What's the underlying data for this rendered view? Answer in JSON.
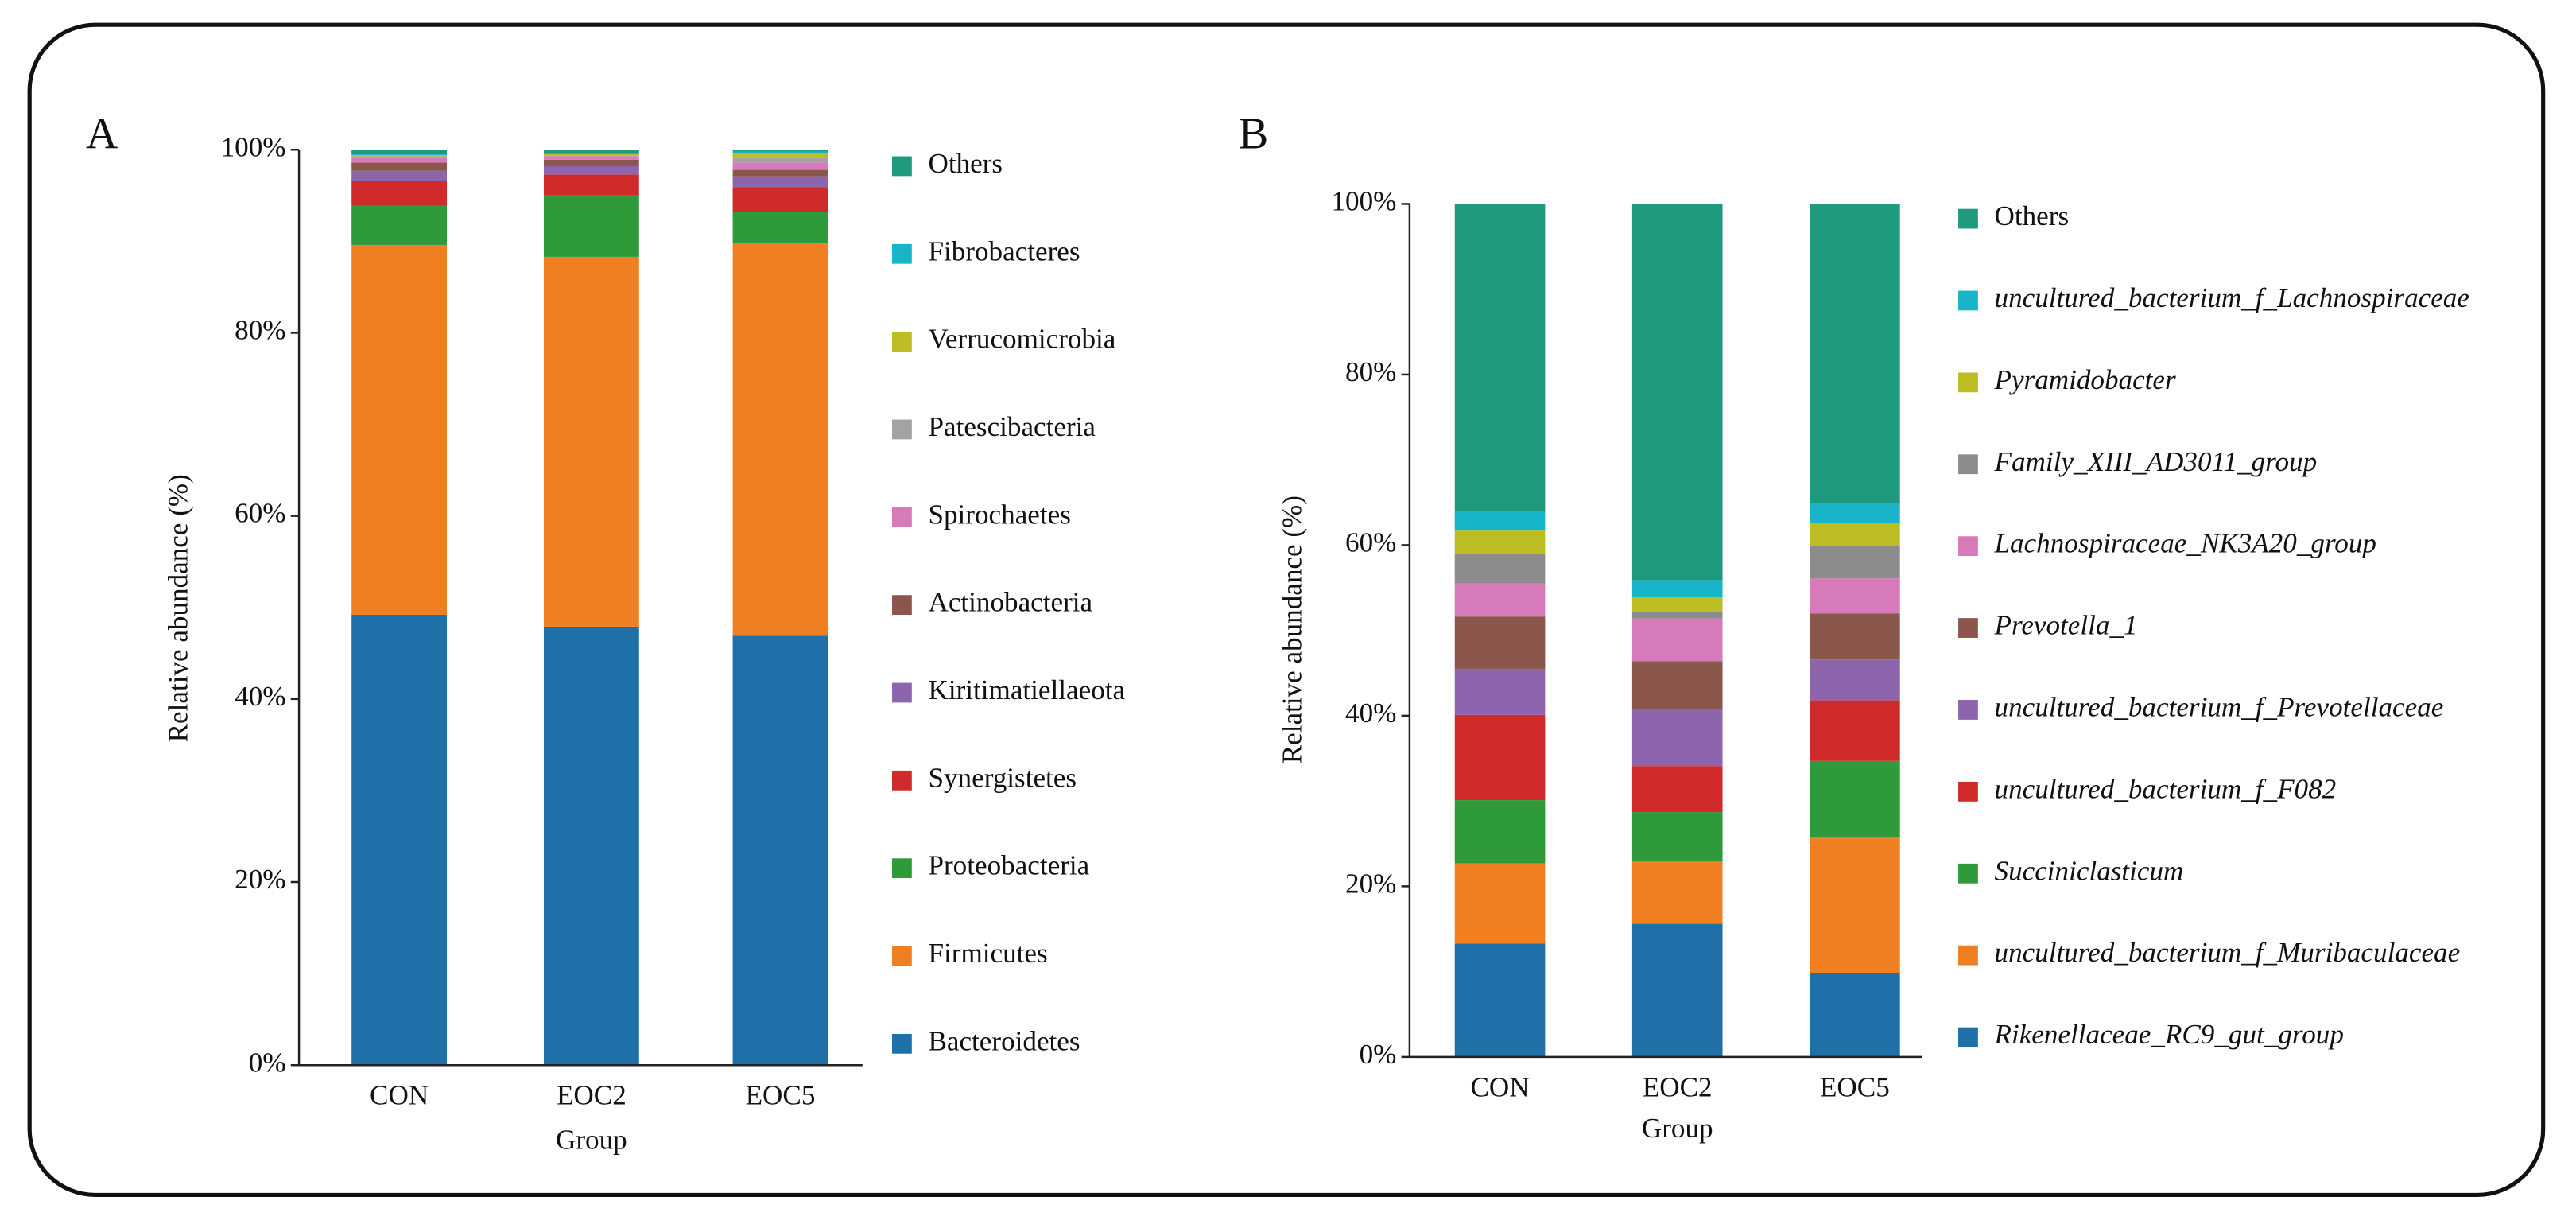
{
  "chart_data": [
    {
      "type": "stacked_bar",
      "panel": "A",
      "xlabel": "Group",
      "ylabel": "Relative abundance (%)",
      "categories": [
        "CON",
        "EOC2",
        "EOC5"
      ],
      "ylim": [
        0,
        100
      ],
      "yticks": [
        {
          "value": 0,
          "label": "0%"
        },
        {
          "value": 20,
          "label": "20%"
        },
        {
          "value": 40,
          "label": "40%"
        },
        {
          "value": 60,
          "label": "60%"
        },
        {
          "value": 80,
          "label": "80%"
        },
        {
          "value": 100,
          "label": "100%"
        }
      ],
      "series": [
        {
          "name": "Bacteroidetes",
          "color": "#1f6fa8",
          "values": [
            49.2,
            47.9,
            46.9
          ]
        },
        {
          "name": "Firmicutes",
          "color": "#f07f22",
          "values": [
            40.4,
            40.4,
            42.9
          ]
        },
        {
          "name": "Proteobacteria",
          "color": "#2f9a3a",
          "values": [
            4.3,
            6.7,
            3.4
          ]
        },
        {
          "name": "Synergistetes",
          "color": "#d12a2a",
          "values": [
            2.7,
            2.3,
            2.7
          ]
        },
        {
          "name": "Kiritimatiellaeota",
          "color": "#8c65ad",
          "values": [
            1.1,
            0.9,
            1.2
          ]
        },
        {
          "name": "Actinobacteria",
          "color": "#8b564b",
          "values": [
            0.9,
            0.7,
            0.7
          ]
        },
        {
          "name": "Spirochaetes",
          "color": "#d67ab9",
          "values": [
            0.5,
            0.4,
            0.8
          ]
        },
        {
          "name": "Patescibacteria",
          "color": "#a3a3a3",
          "values": [
            0.2,
            0.1,
            0.5
          ]
        },
        {
          "name": "Verrucomicrobia",
          "color": "#bcbd22",
          "values": [
            0.1,
            0.1,
            0.5
          ]
        },
        {
          "name": "Fibrobacteres",
          "color": "#18b5c9",
          "values": [
            0.1,
            0.1,
            0.2
          ]
        },
        {
          "name": "Others",
          "color": "#1f9a7e",
          "values": [
            0.5,
            0.4,
            0.2
          ]
        }
      ]
    },
    {
      "type": "stacked_bar",
      "panel": "B",
      "xlabel": "Group",
      "ylabel": "Relative abundance (%)",
      "categories": [
        "CON",
        "EOC2",
        "EOC5"
      ],
      "ylim": [
        0,
        100
      ],
      "yticks": [
        {
          "value": 0,
          "label": "0%"
        },
        {
          "value": 20,
          "label": "20%"
        },
        {
          "value": 40,
          "label": "40%"
        },
        {
          "value": 60,
          "label": "60%"
        },
        {
          "value": 80,
          "label": "80%"
        },
        {
          "value": 100,
          "label": "100%"
        }
      ],
      "series": [
        {
          "name": "Rikenellaceae_RC9_gut_group",
          "color": "#1f6fa8",
          "values": [
            13.3,
            15.6,
            9.8
          ]
        },
        {
          "name": "uncultured_bacterium_f_Muribaculaceae",
          "color": "#f07f22",
          "values": [
            9.4,
            7.3,
            16.0
          ]
        },
        {
          "name": "Succiniclasticum",
          "color": "#2f9a3a",
          "values": [
            7.4,
            5.8,
            8.9
          ]
        },
        {
          "name": "uncultured_bacterium_f_F082",
          "color": "#d12a2a",
          "values": [
            10.0,
            5.4,
            7.1
          ]
        },
        {
          "name": "uncultured_bacterium_f_Prevotellaceae",
          "color": "#8c65ad",
          "values": [
            5.4,
            6.6,
            4.8
          ]
        },
        {
          "name": "Prevotella_1",
          "color": "#8b564b",
          "values": [
            6.1,
            5.7,
            5.4
          ]
        },
        {
          "name": "Lachnospiraceae_NK3A20_group",
          "color": "#d67ab9",
          "values": [
            3.9,
            5.0,
            4.1
          ]
        },
        {
          "name": "Family_XIII_AD3011_group",
          "color": "#8c8c8c",
          "values": [
            3.5,
            0.8,
            3.8
          ]
        },
        {
          "name": "Pyramidobacter",
          "color": "#bcbd22",
          "values": [
            2.7,
            1.7,
            2.7
          ]
        },
        {
          "name": "uncultured_bacterium_f_Lachnospiraceae",
          "color": "#18b5c9",
          "values": [
            2.3,
            2.0,
            2.3
          ]
        },
        {
          "name": "Others",
          "color": "#1f9a7e",
          "values": [
            36.0,
            44.1,
            35.1
          ]
        }
      ]
    }
  ]
}
